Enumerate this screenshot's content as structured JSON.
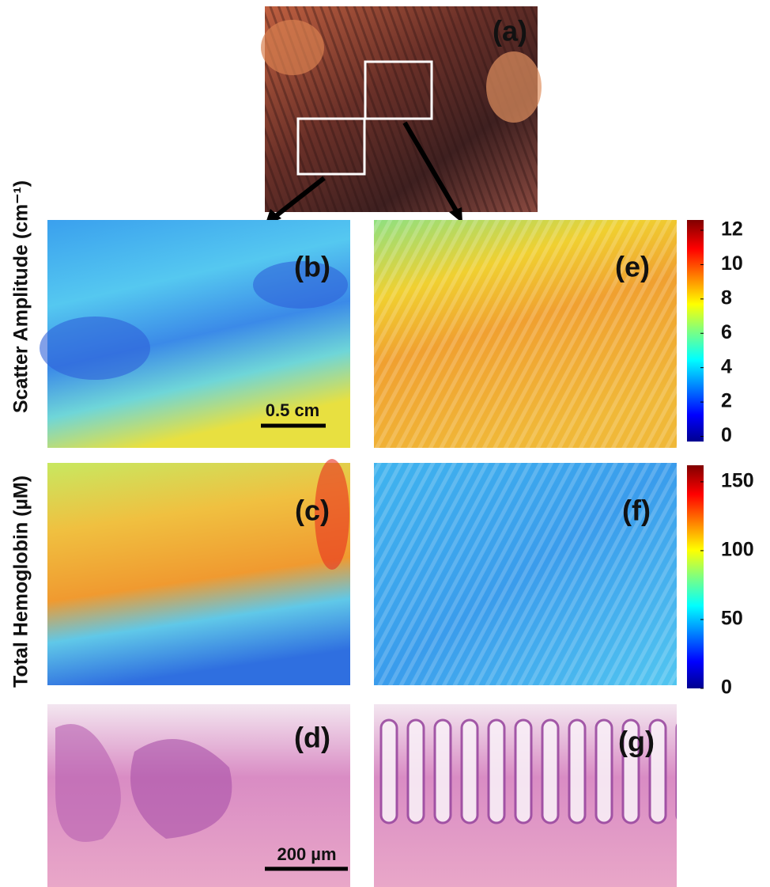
{
  "figure": {
    "panels": [
      "(a)",
      "(b)",
      "(c)",
      "(d)",
      "(e)",
      "(f)",
      "(g)"
    ],
    "axis_labels": [
      "Scatter Amplitude (cm⁻¹)",
      "Total Hemoglobin (µM)"
    ],
    "scale_bars": [
      "0.5 cm",
      "200 µm"
    ],
    "colorbars": [
      {
        "lim": [
          -0.3,
          12.6
        ],
        "ticks": [
          0,
          2,
          4,
          6,
          8,
          10,
          12
        ]
      },
      {
        "lim": [
          0,
          162
        ],
        "ticks": [
          0,
          50,
          100,
          150
        ]
      }
    ]
  }
}
